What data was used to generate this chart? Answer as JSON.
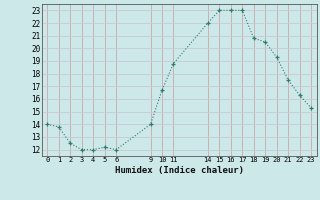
{
  "x": [
    0,
    1,
    2,
    3,
    4,
    5,
    6,
    9,
    10,
    11,
    14,
    15,
    16,
    17,
    18,
    19,
    20,
    21,
    22,
    23
  ],
  "y": [
    14,
    13.8,
    12.5,
    12,
    12,
    12.2,
    12,
    14,
    16.7,
    18.8,
    22,
    23,
    23,
    23,
    20.8,
    20.5,
    19.3,
    17.5,
    16.3,
    15.3
  ],
  "line_color": "#2d7d6f",
  "bg_color": "#cce8e8",
  "grid_color_v": "#c8a8a8",
  "grid_color_h": "#c8c8d8",
  "xlabel": "Humidex (Indice chaleur)",
  "xticks": [
    0,
    1,
    2,
    3,
    4,
    5,
    6,
    9,
    10,
    11,
    14,
    15,
    16,
    17,
    18,
    19,
    20,
    21,
    22,
    23
  ],
  "yticks": [
    12,
    13,
    14,
    15,
    16,
    17,
    18,
    19,
    20,
    21,
    22,
    23
  ],
  "ylim": [
    11.5,
    23.5
  ],
  "xlim": [
    -0.5,
    23.5
  ]
}
